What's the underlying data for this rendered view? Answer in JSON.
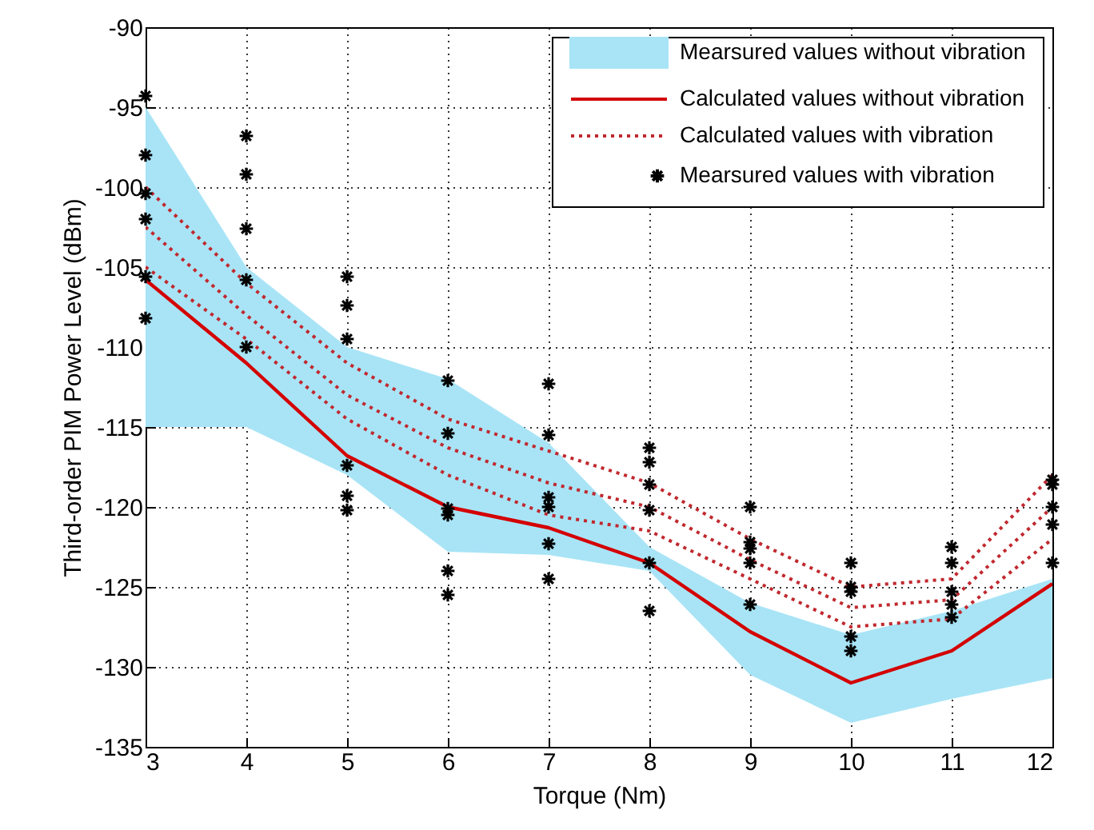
{
  "chart_data": {
    "type": "line",
    "xlabel": "Torque (Nm)",
    "ylabel": "Third-order PIM Power Level (dBm)",
    "xlim": [
      3,
      12
    ],
    "ylim": [
      -135,
      -90
    ],
    "xticks": [
      3,
      4,
      5,
      6,
      7,
      8,
      9,
      10,
      11,
      12
    ],
    "yticks": [
      -135,
      -130,
      -125,
      -120,
      -115,
      -110,
      -105,
      -100,
      -95,
      -90
    ],
    "grid": true,
    "legend": "top right",
    "series": [
      {
        "name": "Mearsured values without vibration",
        "type": "area",
        "color": "#a8e4f6",
        "x": [
          3,
          4,
          5,
          6,
          7,
          8,
          9,
          10,
          11,
          12
        ],
        "values": [
          null,
          null,
          null,
          null,
          null,
          null,
          null,
          null,
          null,
          null
        ],
        "lower": [
          -115,
          -115,
          -118,
          -122.8,
          -123,
          -124,
          -130.5,
          -133.5,
          -132,
          -130.7
        ],
        "upper": [
          -95,
          -105,
          -110,
          -112,
          -116,
          -122.5,
          -126,
          -128,
          -126.5,
          -124.5
        ]
      },
      {
        "name": "Calculated values without vibration",
        "color": "#d40000",
        "line_style": "solid",
        "x": [
          3,
          4,
          5,
          6,
          7,
          8,
          9,
          10,
          11,
          12
        ],
        "values": [
          -105.8,
          -111,
          -116.8,
          -120,
          -121.3,
          -123.5,
          -127.8,
          -131,
          -129,
          -124.8
        ]
      },
      {
        "name": "Calculated values with vibration",
        "color": "#c0282e",
        "line_style": "dotted",
        "x": [
          3,
          4,
          5,
          6,
          7,
          8,
          9,
          10,
          11,
          12
        ],
        "values": [
          -100,
          -106,
          -111,
          -114.5,
          -116.5,
          -118.5,
          -122,
          -125,
          -124.5,
          -118
        ]
      },
      {
        "color": "#c0282e",
        "line_style": "dotted",
        "x": [
          3,
          4,
          5,
          6,
          7,
          8,
          9,
          10,
          11,
          12
        ],
        "values": [
          -102.5,
          -108,
          -113,
          -116.3,
          -118.5,
          -120,
          -123.3,
          -126.3,
          -125.8,
          -120
        ]
      },
      {
        "color": "#c0282e",
        "line_style": "dotted",
        "x": [
          3,
          4,
          5,
          6,
          7,
          8,
          9,
          10,
          11,
          12
        ],
        "values": [
          -105,
          -109.5,
          -114.5,
          -118,
          -120.5,
          -121.5,
          -124.5,
          -127.5,
          -127,
          -122
        ]
      },
      {
        "name": "Mearsured values with vibration",
        "type": "scatter",
        "color": "#000000",
        "marker": "cross",
        "x": [
          3,
          3,
          3,
          3,
          3,
          3,
          4,
          4,
          4,
          4,
          4,
          5,
          5,
          5,
          5,
          5,
          5,
          6,
          6,
          6,
          6,
          6,
          6,
          7,
          7,
          7,
          7,
          7,
          7,
          8,
          8,
          8,
          8,
          8,
          8,
          9,
          9,
          9,
          9,
          9,
          10,
          10,
          10,
          10,
          10,
          11,
          11,
          11,
          11,
          11,
          12,
          12,
          12,
          12,
          12
        ],
        "values": [
          -94.3,
          -98,
          -100.4,
          -102,
          -105.6,
          -108.2,
          -96.8,
          -99.2,
          -102.6,
          -105.8,
          -110,
          -105.6,
          -107.4,
          -109.5,
          -117.4,
          -119.3,
          -120.2,
          -112.1,
          -115.4,
          -120.1,
          -120.5,
          -124,
          -125.5,
          -112.3,
          -115.5,
          -119.4,
          -120,
          -122.3,
          -124.5,
          -116.3,
          -117.2,
          -118.6,
          -120.2,
          -123.5,
          -126.5,
          -120,
          -122.2,
          -122.6,
          -123.5,
          -126.1,
          -123.5,
          -125,
          -125.3,
          -128.1,
          -129,
          -122.5,
          -123.5,
          -125.3,
          -126.1,
          -126.9,
          -118.3,
          -118.6,
          -120,
          -121.1,
          -123.5
        ]
      }
    ]
  }
}
